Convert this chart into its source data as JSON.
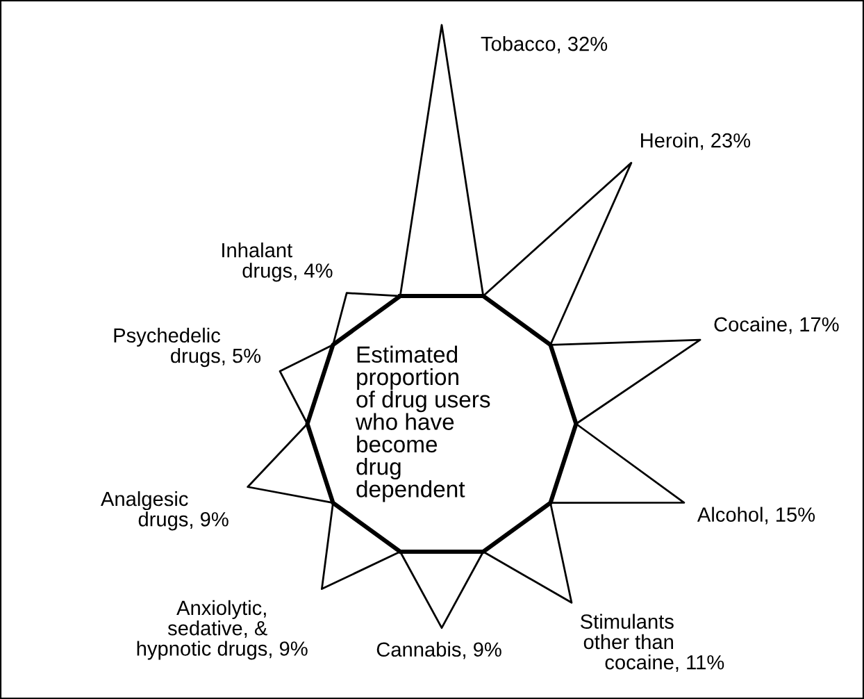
{
  "chart_data": {
    "type": "other",
    "title": "Estimated\nproportion\nof drug users\nwho have\nbecome\ndrug\ndependent",
    "categories": [
      "Tobacco",
      "Heroin",
      "Cocaine",
      "Alcohol",
      "Stimulants\nother than\ncocaine",
      "Cannabis",
      "Anxiolytic,\nsedative, &\nhypnotic drugs",
      "Analgesic\ndrugs",
      "Psychedelic\ndrugs",
      "Inhalant\ndrugs"
    ],
    "values": [
      32,
      23,
      17,
      15,
      11,
      9,
      9,
      9,
      5,
      4
    ],
    "value_labels": [
      ", 32%",
      ", 23%",
      ", 17%",
      ", 15%",
      ", 11%",
      ", 9%",
      ", 9%",
      ", 9%",
      ", 5%",
      ", 4%"
    ]
  }
}
